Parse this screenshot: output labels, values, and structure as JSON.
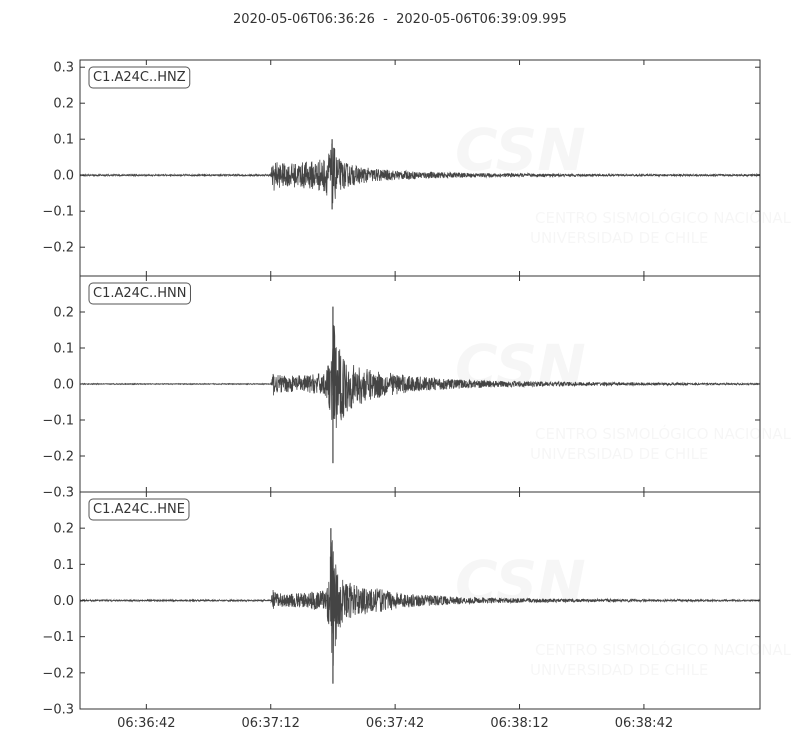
{
  "title": "2020-05-06T06:36:26  -  2020-05-06T06:39:09.995",
  "watermark": {
    "logo": "CSN",
    "line1": "CENTRO SISMOLÓGICO NACIONAL",
    "line2": "UNIVERSIDAD DE CHILE"
  },
  "colors": {
    "trace": "#444444",
    "axis": "#333333",
    "background": "#ffffff"
  },
  "chart_data": {
    "type": "line",
    "title": "2020-05-06T06:36:26  -  2020-05-06T06:39:09.995",
    "x_ticks": [
      "06:36:42",
      "06:37:12",
      "06:37:42",
      "06:38:12",
      "06:38:42"
    ],
    "x_tick_seconds": [
      16,
      46,
      76,
      106,
      136
    ],
    "xlim_seconds": [
      0,
      163.995
    ],
    "grid": false,
    "panels": [
      {
        "channel": "C1.A24C..HNZ",
        "ylim": [
          -0.28,
          0.32
        ],
        "yticks": [
          0.3,
          0.2,
          0.1,
          0.0,
          -0.1,
          -0.2
        ],
        "ytick_labels": [
          "0.3",
          "0.2",
          "0.1",
          "0.0",
          "−0.1",
          "−0.2"
        ],
        "series": [
          {
            "name": "C1.A24C..HNZ",
            "x": [
              0,
              46,
              46.5,
              47,
              48,
              50,
              53,
              56,
              59,
              60,
              60.8,
              61.5,
              62,
              63,
              65,
              67,
              70,
              75,
              80,
              90,
              100,
              110,
              120,
              130,
              140,
              150,
              164
            ],
            "y_max": [
              0.002,
              0.002,
              0.055,
              0.045,
              0.04,
              0.035,
              0.04,
              0.045,
              0.055,
              0.075,
              0.1,
              0.08,
              0.06,
              0.045,
              0.035,
              0.028,
              0.022,
              0.016,
              0.012,
              0.008,
              0.006,
              0.005,
              0.004,
              0.003,
              0.003,
              0.003,
              0.003
            ],
            "y_min": [
              -0.002,
              -0.002,
              -0.055,
              -0.045,
              -0.04,
              -0.035,
              -0.04,
              -0.045,
              -0.055,
              -0.07,
              -0.095,
              -0.08,
              -0.06,
              -0.045,
              -0.035,
              -0.028,
              -0.022,
              -0.016,
              -0.012,
              -0.008,
              -0.006,
              -0.005,
              -0.004,
              -0.003,
              -0.003,
              -0.003,
              -0.003
            ]
          }
        ]
      },
      {
        "channel": "C1.A24C..HNN",
        "ylim": [
          -0.3,
          0.3
        ],
        "yticks": [
          0.2,
          0.1,
          0.0,
          -0.1,
          -0.2,
          -0.3
        ],
        "ytick_labels": [
          "0.2",
          "0.1",
          "0.0",
          "−0.1",
          "−0.2",
          "−0.3"
        ],
        "series": [
          {
            "name": "C1.A24C..HNN",
            "x": [
              0,
              46,
              46.5,
              47,
              50,
              55,
              59,
              60.5,
              61,
              61.5,
              62,
              63,
              64,
              66,
              68,
              70,
              75,
              80,
              90,
              100,
              110,
              120,
              130,
              140,
              150,
              164
            ],
            "y_max": [
              0.001,
              0.001,
              0.04,
              0.03,
              0.025,
              0.028,
              0.035,
              0.08,
              0.215,
              0.16,
              0.13,
              0.1,
              0.08,
              0.06,
              0.05,
              0.045,
              0.035,
              0.025,
              0.015,
              0.01,
              0.008,
              0.006,
              0.005,
              0.004,
              0.003,
              0.002
            ],
            "y_min": [
              -0.001,
              -0.001,
              -0.04,
              -0.03,
              -0.025,
              -0.028,
              -0.035,
              -0.09,
              -0.22,
              -0.16,
              -0.15,
              -0.12,
              -0.09,
              -0.07,
              -0.06,
              -0.05,
              -0.035,
              -0.025,
              -0.015,
              -0.01,
              -0.008,
              -0.006,
              -0.005,
              -0.004,
              -0.003,
              -0.002
            ]
          }
        ]
      },
      {
        "channel": "C1.A24C..HNE",
        "ylim": [
          -0.3,
          0.3
        ],
        "yticks": [
          0.2,
          0.1,
          0.0,
          -0.1,
          -0.2,
          -0.3
        ],
        "ytick_labels": [
          "0.2",
          "0.1",
          "0.0",
          "−0.1",
          "−0.2",
          "−0.3"
        ],
        "series": [
          {
            "name": "C1.A24C..HNE",
            "x": [
              0,
              46,
              46.5,
              47,
              50,
              55,
              59,
              60,
              60.5,
              61,
              61.5,
              62,
              63,
              64,
              66,
              68,
              70,
              75,
              80,
              90,
              100,
              110,
              120,
              130,
              140,
              150,
              164
            ],
            "y_max": [
              0.002,
              0.002,
              0.035,
              0.025,
              0.02,
              0.025,
              0.035,
              0.08,
              0.2,
              0.2,
              0.12,
              0.1,
              0.08,
              0.06,
              0.05,
              0.045,
              0.04,
              0.03,
              0.02,
              0.012,
              0.008,
              0.006,
              0.005,
              0.004,
              0.003,
              0.003,
              0.002
            ],
            "y_min": [
              -0.002,
              -0.002,
              -0.035,
              -0.025,
              -0.02,
              -0.025,
              -0.035,
              -0.08,
              -0.15,
              -0.23,
              -0.16,
              -0.11,
              -0.08,
              -0.06,
              -0.05,
              -0.045,
              -0.04,
              -0.03,
              -0.02,
              -0.012,
              -0.008,
              -0.006,
              -0.005,
              -0.004,
              -0.003,
              -0.003,
              -0.002
            ]
          }
        ]
      }
    ]
  }
}
